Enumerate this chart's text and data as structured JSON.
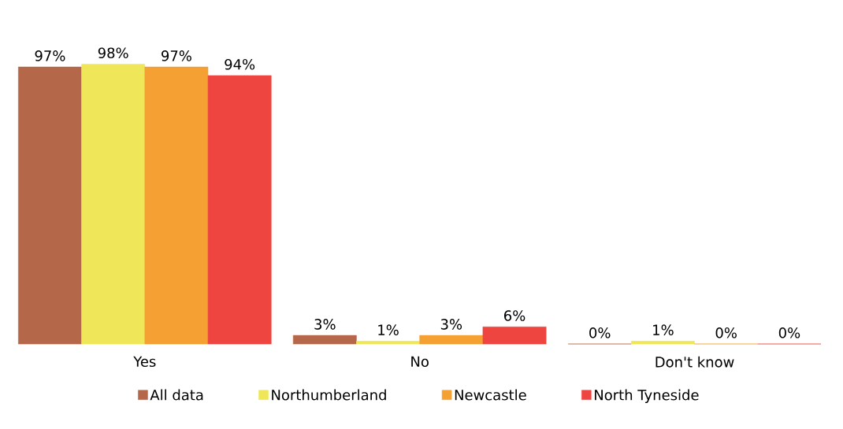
{
  "chart_data": {
    "type": "bar",
    "categories": [
      "Yes",
      "No",
      "Don't know"
    ],
    "series": [
      {
        "name": "All data",
        "color": "#b5674a",
        "values": [
          97,
          3,
          0
        ],
        "value_labels": [
          "97%",
          "3%",
          "0%"
        ]
      },
      {
        "name": "Northumberland",
        "color": "#efe65a",
        "values": [
          98,
          1,
          1
        ],
        "value_labels": [
          "98%",
          "1%",
          "1%"
        ]
      },
      {
        "name": "Newcastle",
        "color": "#f4a033",
        "values": [
          97,
          3,
          0
        ],
        "value_labels": [
          "97%",
          "3%",
          "0%"
        ]
      },
      {
        "name": "North Tyneside",
        "color": "#ee4540",
        "values": [
          94,
          6,
          0
        ],
        "value_labels": [
          "94%",
          "6%",
          "0%"
        ]
      }
    ],
    "legend": "bottom"
  }
}
